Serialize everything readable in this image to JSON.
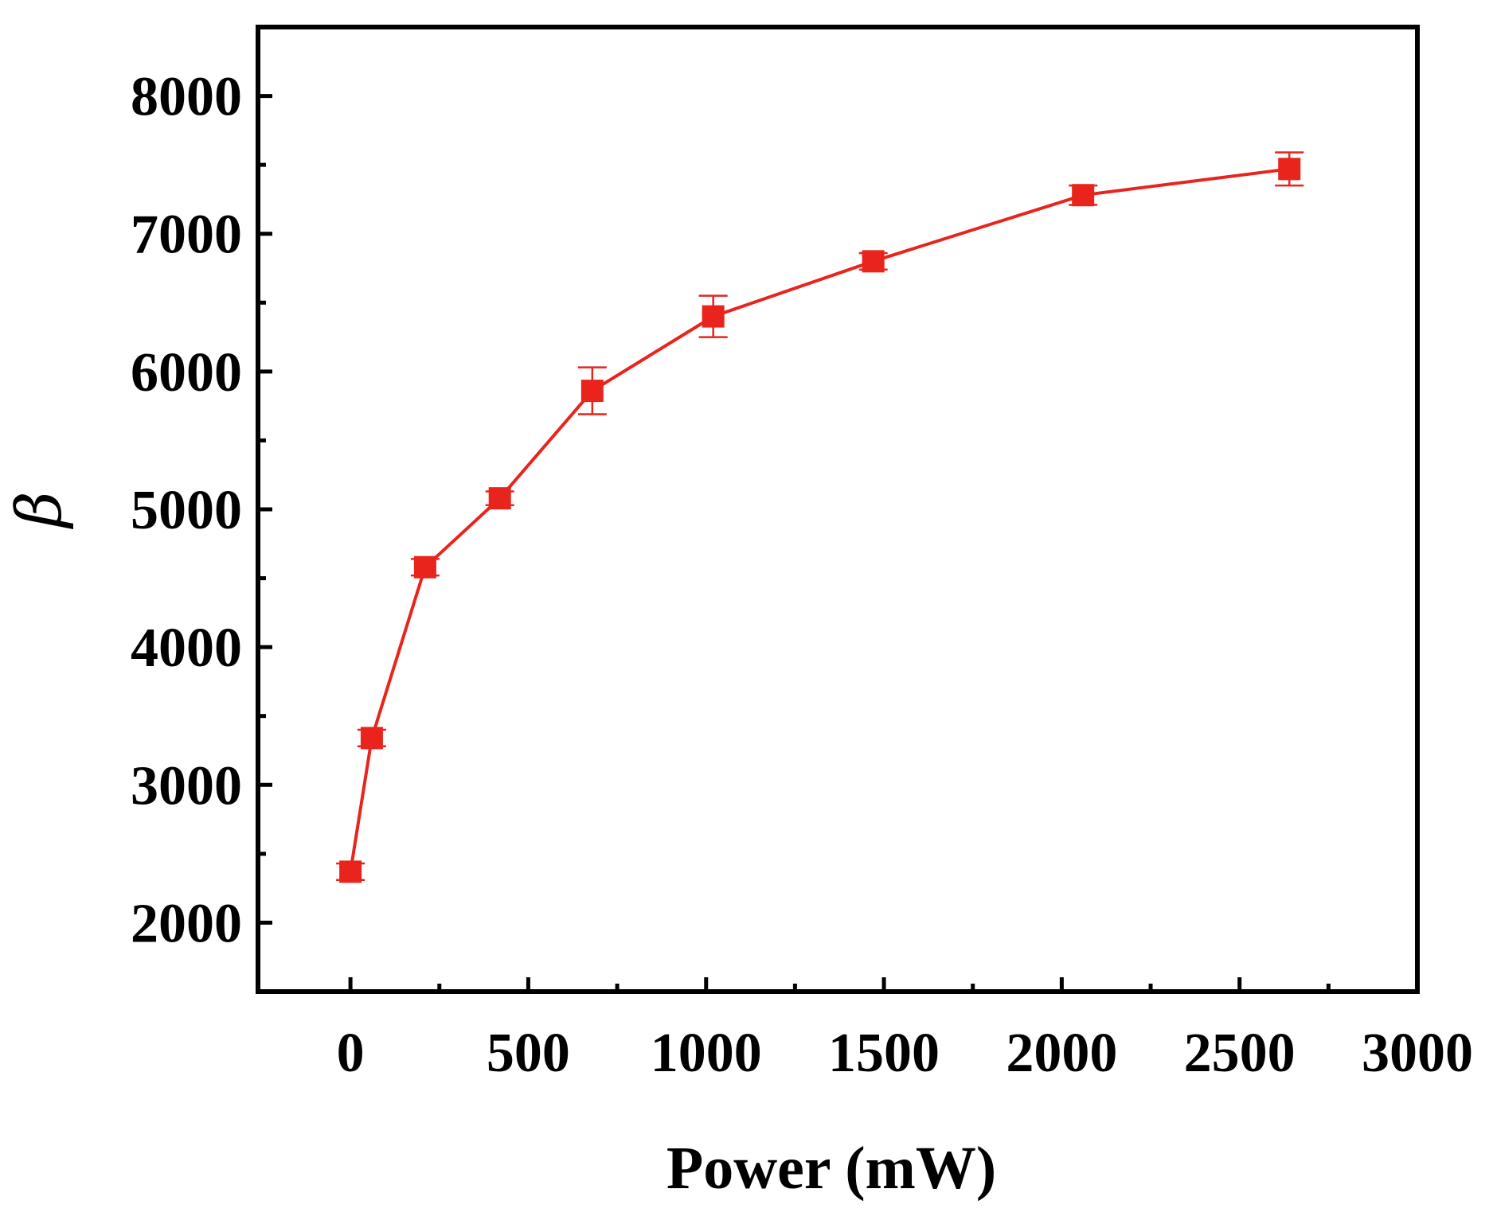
{
  "chart_data": {
    "type": "line",
    "title": "",
    "xlabel": "Power (mW)",
    "ylabel": "β",
    "xlim": [
      -260,
      3000
    ],
    "ylim": [
      1500,
      8500
    ],
    "xticks": [
      0,
      500,
      1000,
      1500,
      2000,
      2500,
      3000
    ],
    "xtick_labels": [
      "0",
      "500",
      "1000",
      "1500",
      "2000",
      "2500",
      "3000"
    ],
    "xminor": [
      250,
      750,
      1250,
      1750,
      2250,
      2750
    ],
    "yticks": [
      2000,
      3000,
      4000,
      5000,
      6000,
      7000,
      8000
    ],
    "ytick_labels": [
      "2000",
      "3000",
      "4000",
      "5000",
      "6000",
      "7000",
      "8000"
    ],
    "yminor": [
      1500,
      2500,
      3500,
      4500,
      5500,
      6500,
      7500,
      8500
    ],
    "grid": false,
    "legend": "none",
    "series": [
      {
        "name": "β",
        "color": "#e8241c",
        "marker": "square",
        "x": [
          0,
          60,
          210,
          420,
          680,
          1020,
          1470,
          2060,
          2640
        ],
        "y": [
          2370,
          3340,
          4580,
          5080,
          5860,
          6400,
          6800,
          7280,
          7470
        ],
        "err": [
          60,
          60,
          60,
          50,
          170,
          150,
          60,
          70,
          120
        ]
      }
    ]
  }
}
